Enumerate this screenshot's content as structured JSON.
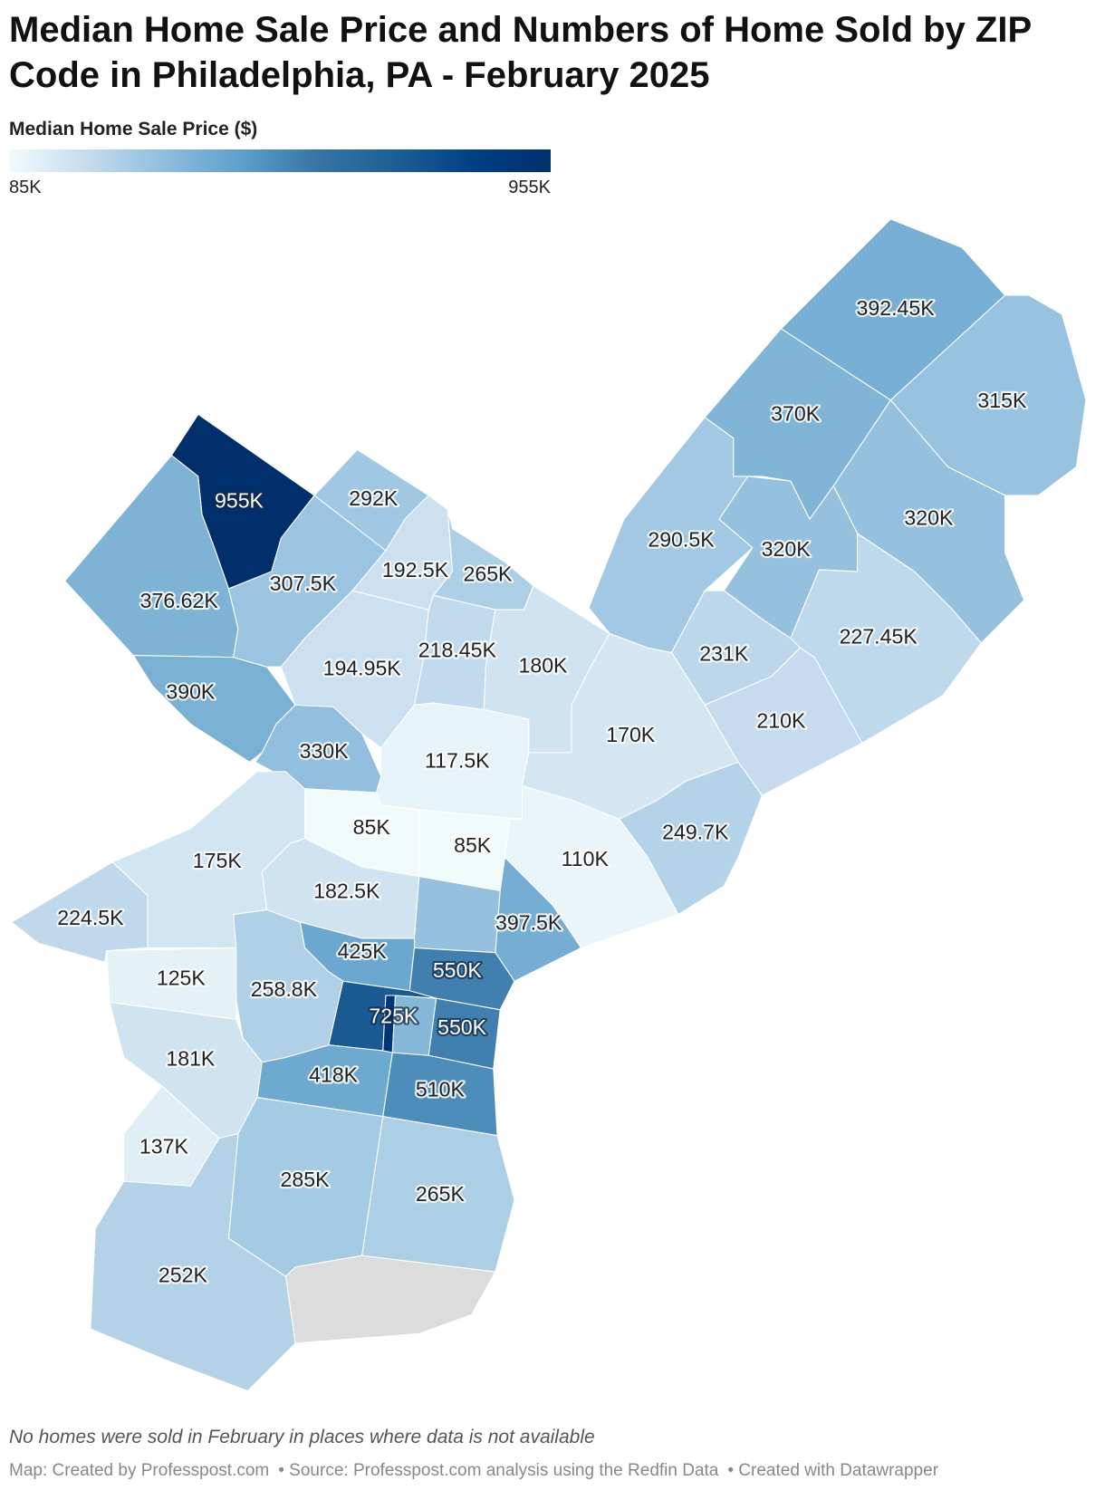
{
  "chart_data": {
    "type": "choropleth",
    "title": "Median Home Sale Price and Numbers of Home Sold by ZIP Code in Philadelphia, PA - February 2025",
    "legend_title": "Median Home Sale Price ($)",
    "color_domain": [
      85000,
      955000
    ],
    "colorscale": [
      "#f2fbfc",
      "#c6dcee",
      "#8fbedd",
      "#5e9fca",
      "#3674a4",
      "#1d5f94",
      "#003f86",
      "#002f6c"
    ],
    "legend_ticks": [
      {
        "value": 85000,
        "label": "85K"
      },
      {
        "value": 955000,
        "label": "955K"
      }
    ],
    "values": [
      955000,
      376620,
      390000,
      307500,
      292000,
      330000,
      194950,
      192500,
      265000,
      218450,
      180000,
      117500,
      170000,
      290500,
      370000,
      392450,
      315000,
      320000,
      320000,
      231000,
      227450,
      210000,
      249700,
      110000,
      85000,
      85000,
      182500,
      397500,
      320000,
      425000,
      550000,
      725000,
      900000,
      360000,
      550000,
      418000,
      510000,
      258800,
      175000,
      224500,
      125000,
      181000,
      137000,
      285000,
      265000,
      252000
    ],
    "value_labels": [
      "955K",
      "376.62K",
      "390K",
      "307.5K",
      "292K",
      "330K",
      "194.95K",
      "192.5K",
      "265K",
      "218.45K",
      "180K",
      "117.5K",
      "170K",
      "290.5K",
      "370K",
      "392.45K",
      "315K",
      "320K",
      "320K",
      "231K",
      "227.45K",
      "210K",
      "249.7K",
      "110K",
      "85K",
      "85K",
      "182.5K",
      "397.5K",
      null,
      "425K",
      "550K",
      "725K",
      null,
      null,
      "550K",
      "418K",
      "510K",
      "258.8K",
      "175K",
      "224.5K",
      "125K",
      "181K",
      "137K",
      "285K",
      "265K",
      "252K"
    ],
    "note": "No homes were sold in February in places where data is not available",
    "footer": [
      "Map: Created by Professpost.com",
      "• Source: Professpost.com analysis using the Redfin Data",
      "• Created with Datawrapper"
    ]
  }
}
